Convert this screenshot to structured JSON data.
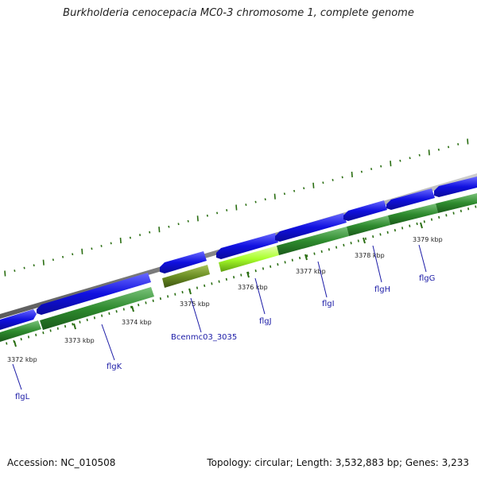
{
  "title": "Burkholderia cenocepacia MC0-3 chromosome 1, complete genome",
  "footer": {
    "accession": "Accession: NC_010508",
    "summary": "Topology: circular; Length: 3,532,883 bp; Genes: 3,233"
  },
  "ticks": [
    {
      "label": "3372 kbp"
    },
    {
      "label": "3373 kbp"
    },
    {
      "label": "3374 kbp"
    },
    {
      "label": "3375 kbp"
    },
    {
      "label": "3376 kbp"
    },
    {
      "label": "3377 kbp"
    },
    {
      "label": "3378 kbp"
    },
    {
      "label": "3379 kbp"
    }
  ],
  "genes": [
    {
      "label": "flgL"
    },
    {
      "label": "flgK"
    },
    {
      "label": "Bcenmc03_3035"
    },
    {
      "label": "flgJ"
    },
    {
      "label": "flgI"
    },
    {
      "label": "flgH"
    },
    {
      "label": "flgG"
    }
  ],
  "colors": {
    "cds_blue": "#1010e0",
    "gene_green": "#2e8b2e",
    "highlight_green": "#a8ff2a",
    "pseudo_olive": "#6b8e23",
    "backbone": "#8c8c8c",
    "label_blue": "#1a1aa6"
  }
}
